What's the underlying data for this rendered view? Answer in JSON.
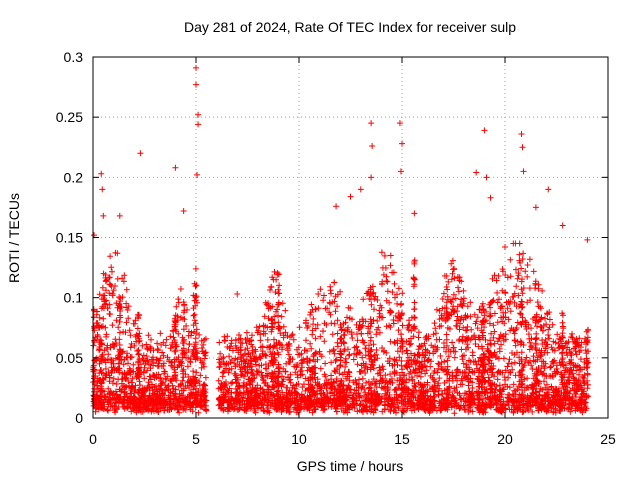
{
  "chart_data": {
    "type": "scatter",
    "title": "Day 281 of 2024, Rate Of TEC Index for receiver sulp",
    "xlabel": "GPS time / hours",
    "ylabel": "ROTI / TECUs",
    "xlim": [
      0,
      25
    ],
    "ylim": [
      0,
      0.3
    ],
    "xticks": [
      0,
      5,
      10,
      15,
      20,
      25
    ],
    "yticks": [
      0,
      0.05,
      0.1,
      0.15,
      0.2,
      0.25,
      0.3
    ],
    "xtick_labels": [
      "0",
      "5",
      "10",
      "15",
      "20",
      "25"
    ],
    "ytick_labels": [
      "0",
      "0.05",
      "0.1",
      "0.15",
      "0.2",
      "0.25",
      "0.3"
    ],
    "grid": true,
    "marker": "plus",
    "color": "#ff0000",
    "data_gap_hours": [
      5.5,
      6.1
    ],
    "notable_points": [
      {
        "x": 0.05,
        "y": 0.152
      },
      {
        "x": 0.4,
        "y": 0.203
      },
      {
        "x": 0.45,
        "y": 0.19
      },
      {
        "x": 0.5,
        "y": 0.168
      },
      {
        "x": 1.3,
        "y": 0.168
      },
      {
        "x": 2.3,
        "y": 0.22
      },
      {
        "x": 4.0,
        "y": 0.208
      },
      {
        "x": 4.4,
        "y": 0.172
      },
      {
        "x": 5.0,
        "y": 0.291
      },
      {
        "x": 5.0,
        "y": 0.277
      },
      {
        "x": 5.1,
        "y": 0.252
      },
      {
        "x": 5.1,
        "y": 0.244
      },
      {
        "x": 5.05,
        "y": 0.202
      },
      {
        "x": 7.0,
        "y": 0.103
      },
      {
        "x": 11.8,
        "y": 0.176
      },
      {
        "x": 12.5,
        "y": 0.184
      },
      {
        "x": 13.0,
        "y": 0.19
      },
      {
        "x": 13.5,
        "y": 0.245
      },
      {
        "x": 13.55,
        "y": 0.226
      },
      {
        "x": 13.5,
        "y": 0.2
      },
      {
        "x": 14.9,
        "y": 0.245
      },
      {
        "x": 15.0,
        "y": 0.228
      },
      {
        "x": 14.95,
        "y": 0.205
      },
      {
        "x": 15.6,
        "y": 0.17
      },
      {
        "x": 18.6,
        "y": 0.204
      },
      {
        "x": 19.0,
        "y": 0.239
      },
      {
        "x": 19.1,
        "y": 0.2
      },
      {
        "x": 19.3,
        "y": 0.183
      },
      {
        "x": 20.8,
        "y": 0.236
      },
      {
        "x": 20.85,
        "y": 0.225
      },
      {
        "x": 20.9,
        "y": 0.205
      },
      {
        "x": 21.5,
        "y": 0.175
      },
      {
        "x": 22.1,
        "y": 0.19
      },
      {
        "x": 22.8,
        "y": 0.16
      },
      {
        "x": 24.0,
        "y": 0.148
      }
    ]
  }
}
